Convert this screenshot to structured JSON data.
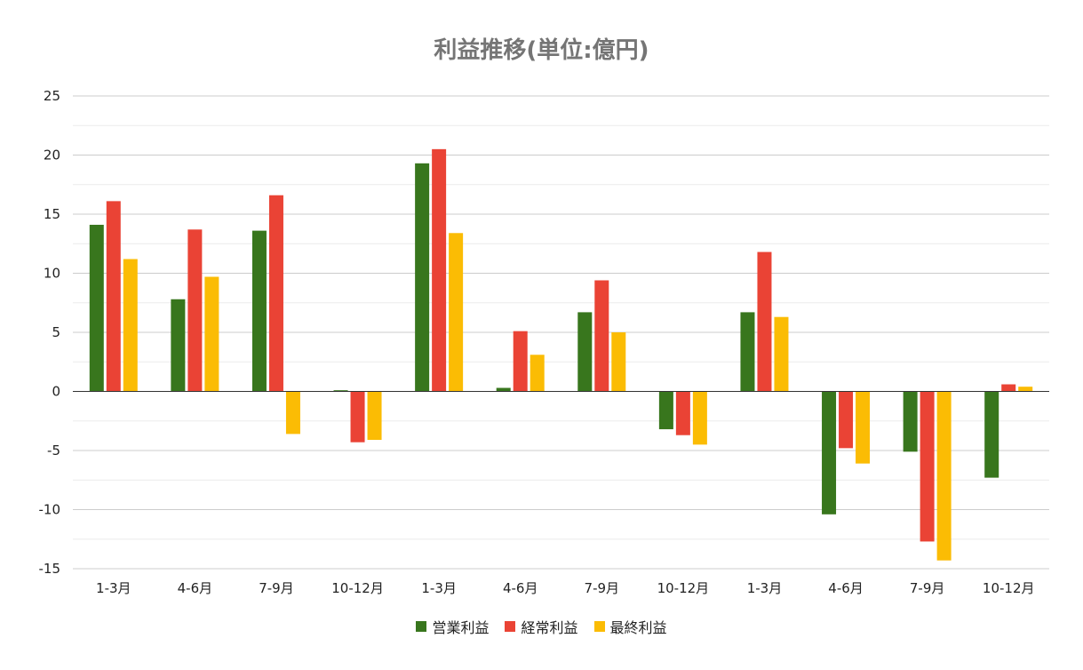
{
  "chart_data": {
    "type": "bar",
    "title": "利益推移(単位:億円)",
    "categories": [
      "1-3月",
      "4-6月",
      "7-9月",
      "10-12月",
      "1-3月",
      "4-6月",
      "7-9月",
      "10-12月",
      "1-3月",
      "4-6月",
      "7-9月",
      "10-12月"
    ],
    "series": [
      {
        "name": "営業利益",
        "color": "#38761d",
        "values": [
          14.1,
          7.8,
          13.6,
          0.1,
          19.3,
          0.3,
          6.7,
          -3.2,
          6.7,
          -10.4,
          -5.1,
          -7.3
        ]
      },
      {
        "name": "経常利益",
        "color": "#ea4335",
        "values": [
          16.1,
          13.7,
          16.6,
          -4.3,
          20.5,
          5.1,
          9.4,
          -3.7,
          11.8,
          -4.8,
          -12.7,
          0.6
        ]
      },
      {
        "name": "最終利益",
        "color": "#fbbc04",
        "values": [
          11.2,
          9.7,
          -3.6,
          -4.1,
          13.4,
          3.1,
          5.0,
          -4.5,
          6.3,
          -6.1,
          -14.3,
          0.4
        ]
      }
    ],
    "y_ticks": [
      "25",
      "20",
      "15",
      "10",
      "5",
      "0",
      "-5",
      "-10",
      "-15"
    ],
    "ylim": [
      -15,
      25
    ],
    "xlabel": "",
    "ylabel": "",
    "grid": true,
    "legend_position": "bottom"
  }
}
